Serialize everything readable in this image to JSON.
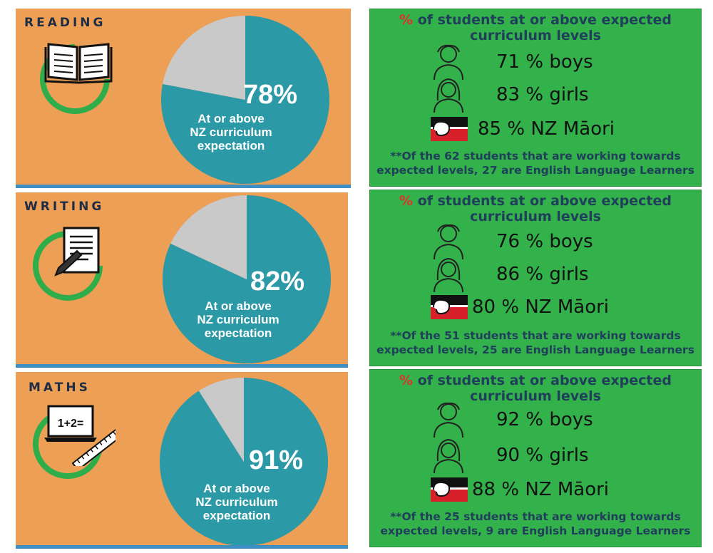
{
  "chart_data": [
    {
      "type": "pie",
      "subject": "READING",
      "values": [
        78,
        22
      ],
      "center_label": "78%",
      "caption": [
        "At or above",
        "NZ curriculum",
        "expectation"
      ],
      "colors": [
        "#2b9aa6",
        "#c9c9c9"
      ],
      "breakdown": {
        "heading_pct": "%",
        "heading_rest_1": " of students at or above expected",
        "heading_rest_2": "curriculum levels",
        "boys": "71 % boys",
        "girls": "83 % girls",
        "maori": "85 % NZ Māori",
        "note_1": "**Of the 62 students that are working towards",
        "note_2": "expected levels, 27 are English Language Learners"
      }
    },
    {
      "type": "pie",
      "subject": "WRITING",
      "values": [
        82,
        18
      ],
      "center_label": "82%",
      "caption": [
        "At or above",
        "NZ curriculum",
        "expectation"
      ],
      "colors": [
        "#2b9aa6",
        "#c9c9c9"
      ],
      "breakdown": {
        "heading_pct": "%",
        "heading_rest_1": " of students at or above expected",
        "heading_rest_2": "curriculum levels",
        "boys": "76 % boys",
        "girls": "86 % girls",
        "maori": "80 % NZ Māori",
        "note_1": "**Of the 51 students that are working towards",
        "note_2": "expected levels, 25 are English Language Learners"
      }
    },
    {
      "type": "pie",
      "subject": "MATHS",
      "values": [
        91,
        9
      ],
      "center_label": "91%",
      "caption": [
        "At or above",
        "NZ curriculum",
        "expectation"
      ],
      "colors": [
        "#2b9aa6",
        "#c9c9c9"
      ],
      "breakdown": {
        "heading_pct": "%",
        "heading_rest_1": " of students at or above expected",
        "heading_rest_2": "curriculum levels",
        "boys": "92 % boys",
        "girls": "90 % girls",
        "maori": "88 % NZ Māori",
        "note_1": "**Of the 25 students that are working towards",
        "note_2": "expected levels, 9  are English Language Learners"
      }
    }
  ],
  "icons": [
    "book-icon",
    "document-pencil-icon",
    "laptop-ruler-icon",
    "boy-icon",
    "girl-icon",
    "maori-flag-icon"
  ],
  "math_screen_text": "1+2="
}
